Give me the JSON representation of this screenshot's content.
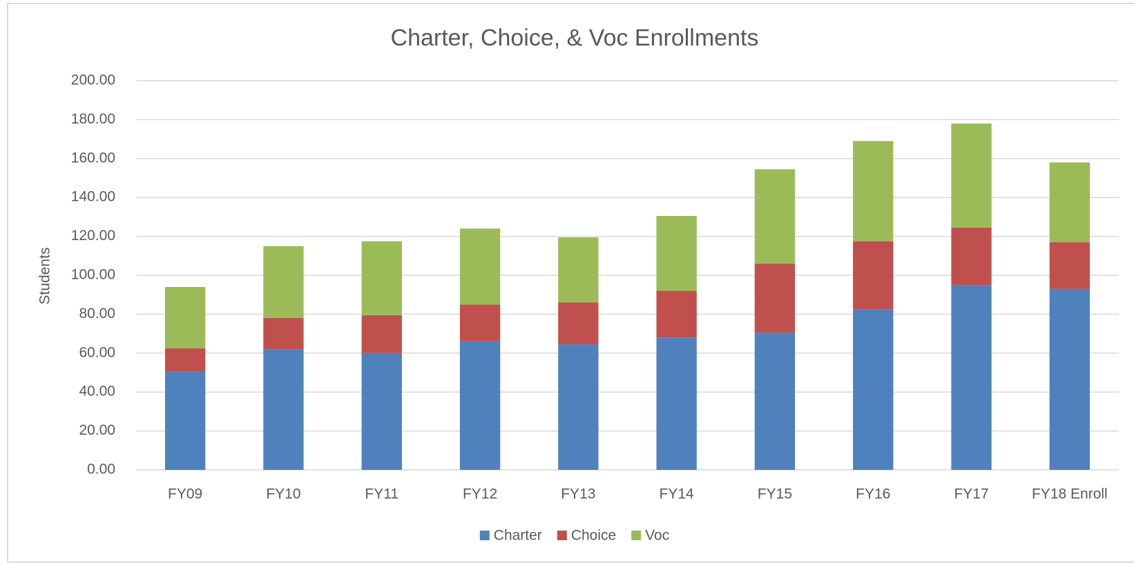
{
  "chart_data": {
    "type": "stacked_bar",
    "title": "Charter, Choice, & Voc Enrollments",
    "y_label": "Students",
    "categories": [
      "FY09",
      "FY10",
      "FY11",
      "FY12",
      "FY13",
      "FY14",
      "FY15",
      "FY16",
      "FY17",
      "FY18 Enroll"
    ],
    "series": [
      {
        "name": "Charter",
        "color": "#4f81bd",
        "values": [
          50.5,
          62,
          60,
          66,
          64.5,
          68,
          70.5,
          82.5,
          95,
          93
        ]
      },
      {
        "name": "Choice",
        "color": "#c0504d",
        "values": [
          12,
          16,
          19.5,
          19,
          21.5,
          24,
          35.5,
          35,
          29.5,
          24
        ]
      },
      {
        "name": "Voc",
        "color": "#9bbb59",
        "values": [
          31.5,
          37,
          38,
          39,
          33.5,
          38.5,
          48.5,
          51.5,
          53.5,
          41
        ]
      }
    ],
    "ylim": [
      0,
      200
    ],
    "yticks": [
      {
        "value": 0,
        "label": "0.00"
      },
      {
        "value": 20,
        "label": "20.00"
      },
      {
        "value": 40,
        "label": "40.00"
      },
      {
        "value": 60,
        "label": "60.00"
      },
      {
        "value": 80,
        "label": "80.00"
      },
      {
        "value": 100,
        "label": "100.00"
      },
      {
        "value": 120,
        "label": "120.00"
      },
      {
        "value": 140,
        "label": "140.00"
      },
      {
        "value": 160,
        "label": "160.00"
      },
      {
        "value": 180,
        "label": "180.00"
      },
      {
        "value": 200,
        "label": "200.00"
      }
    ],
    "grid": true,
    "legend": "bottom"
  }
}
